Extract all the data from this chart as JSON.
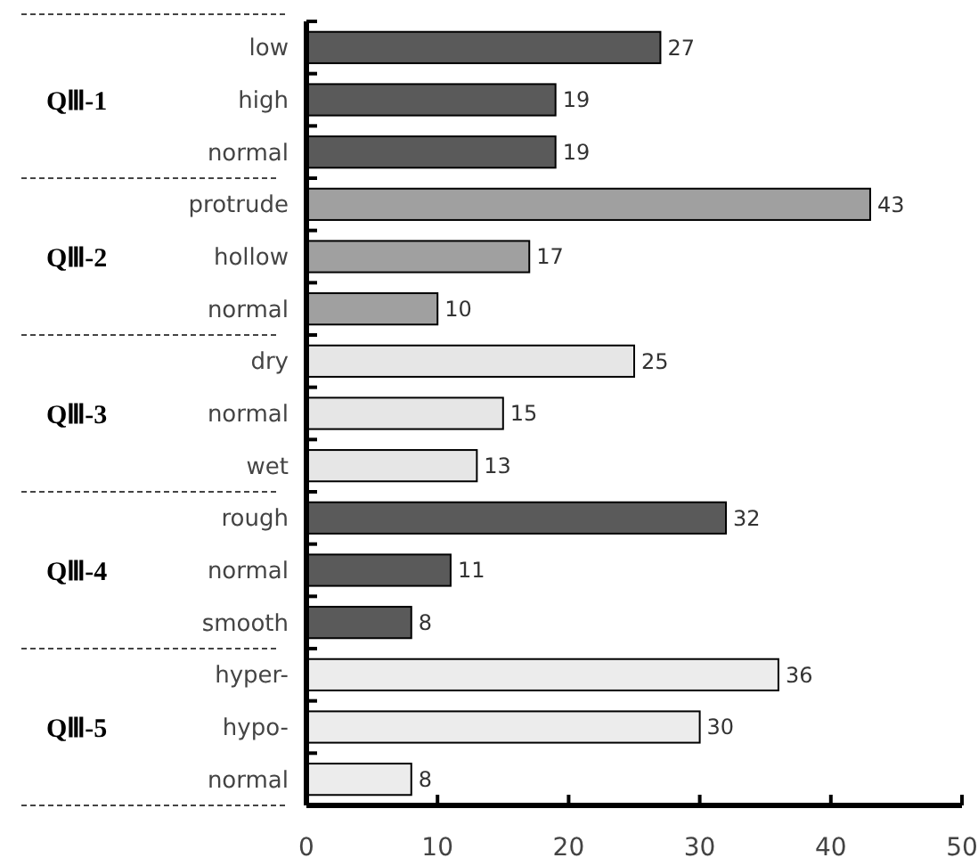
{
  "chart_data": {
    "type": "bar",
    "orientation": "horizontal",
    "categories": [
      "low",
      "high",
      "normal",
      "protrude",
      "hollow",
      "normal",
      "dry",
      "normal",
      "wet",
      "rough",
      "normal",
      "smooth",
      "hyper-",
      "hypo-",
      "normal"
    ],
    "values": [
      27,
      19,
      19,
      43,
      17,
      10,
      25,
      15,
      13,
      32,
      11,
      8,
      36,
      30,
      8
    ],
    "colors": [
      "#5a5a5a",
      "#5a5a5a",
      "#5a5a5a",
      "#a0a0a0",
      "#a0a0a0",
      "#a0a0a0",
      "#e6e6e6",
      "#e6e6e6",
      "#e6e6e6",
      "#5a5a5a",
      "#5a5a5a",
      "#5a5a5a",
      "#ececec",
      "#ececec",
      "#ececec"
    ],
    "xlim": [
      0,
      50
    ],
    "xticks": [
      0,
      10,
      20,
      30,
      40,
      50
    ],
    "data_labels": true,
    "annotations": [
      "QⅢ-1",
      "QⅢ-2",
      "QⅢ-3",
      "QⅢ-4",
      "QⅢ-5"
    ]
  }
}
